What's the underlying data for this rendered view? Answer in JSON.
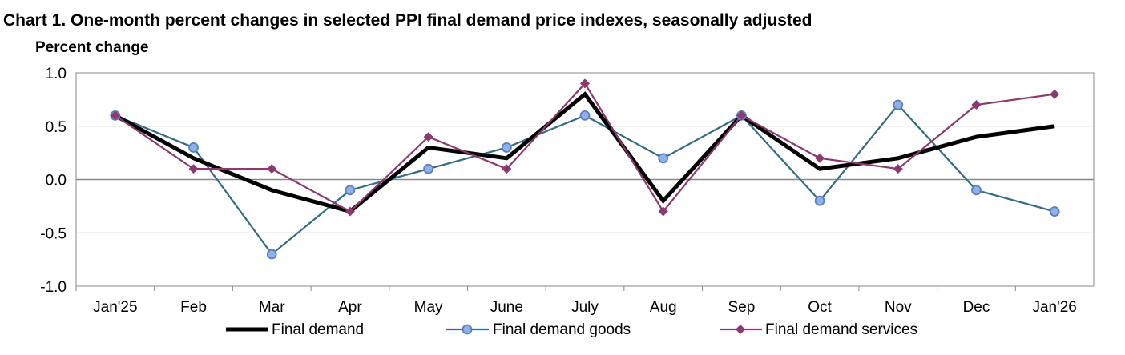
{
  "chart_data": {
    "type": "line",
    "title": "Chart 1. One-month percent changes in selected PPI final demand price indexes, seasonally adjusted",
    "ylabel": "Percent change",
    "xlabel": "",
    "ylim": [
      -1.0,
      1.0
    ],
    "yticks": [
      "1.0",
      "0.5",
      "0.0",
      "-0.5",
      "-1.0"
    ],
    "ytick_values": [
      1.0,
      0.5,
      0.0,
      -0.5,
      -1.0
    ],
    "grid": true,
    "legend_position": "bottom",
    "categories": [
      "Jan'25",
      "Feb",
      "Mar",
      "Apr",
      "May",
      "June",
      "July",
      "Aug",
      "Sep",
      "Oct",
      "Nov",
      "Dec",
      "Jan'26"
    ],
    "series": [
      {
        "name": "Final demand",
        "color": "#000000",
        "values": [
          0.6,
          0.2,
          -0.1,
          -0.3,
          0.3,
          0.2,
          0.8,
          -0.2,
          0.6,
          0.1,
          0.2,
          0.4,
          0.5
        ]
      },
      {
        "name": "Final demand goods",
        "color": "#336b80",
        "marker_fill": "#8fb1ea",
        "values": [
          0.6,
          0.3,
          -0.7,
          -0.1,
          0.1,
          0.3,
          0.6,
          0.2,
          0.6,
          -0.2,
          0.7,
          -0.1,
          -0.3
        ]
      },
      {
        "name": "Final demand services",
        "color": "#8a3a6c",
        "values": [
          0.6,
          0.1,
          0.1,
          -0.3,
          0.4,
          0.1,
          0.9,
          -0.3,
          0.6,
          0.2,
          0.1,
          0.7,
          0.8
        ]
      }
    ]
  }
}
